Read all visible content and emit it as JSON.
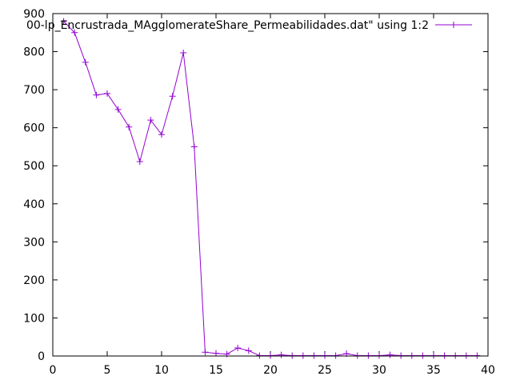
{
  "chart_data": {
    "type": "line",
    "title": "",
    "xlabel": "",
    "ylabel": "",
    "xlim": [
      0,
      40
    ],
    "ylim": [
      0,
      900
    ],
    "x_ticks": [
      0,
      5,
      10,
      15,
      20,
      25,
      30,
      35,
      40
    ],
    "y_ticks": [
      0,
      100,
      200,
      300,
      400,
      500,
      600,
      700,
      800,
      900
    ],
    "grid": false,
    "legend_position": "top-right",
    "series": [
      {
        "name": "00-lp_Encrustrada_MAgglomerateShare_Permeabilidades.dat\" using 1:2",
        "color": "#9400d3",
        "marker": "plus",
        "x": [
          1,
          2,
          3,
          4,
          5,
          6,
          7,
          8,
          9,
          10,
          11,
          12,
          13,
          14,
          15,
          16,
          17,
          18,
          19,
          20,
          21,
          22,
          23,
          24,
          25,
          26,
          27,
          28,
          29,
          30,
          31,
          32,
          33,
          34,
          35,
          36,
          37,
          38,
          39
        ],
        "y": [
          880,
          850,
          772,
          686,
          690,
          648,
          602,
          511,
          620,
          582,
          683,
          797,
          550,
          10,
          7,
          5,
          21,
          14,
          1,
          1,
          3,
          1,
          1,
          1,
          1,
          1,
          6,
          1,
          1,
          1,
          3,
          1,
          1,
          1,
          1,
          1,
          1,
          1,
          1
        ]
      }
    ]
  }
}
